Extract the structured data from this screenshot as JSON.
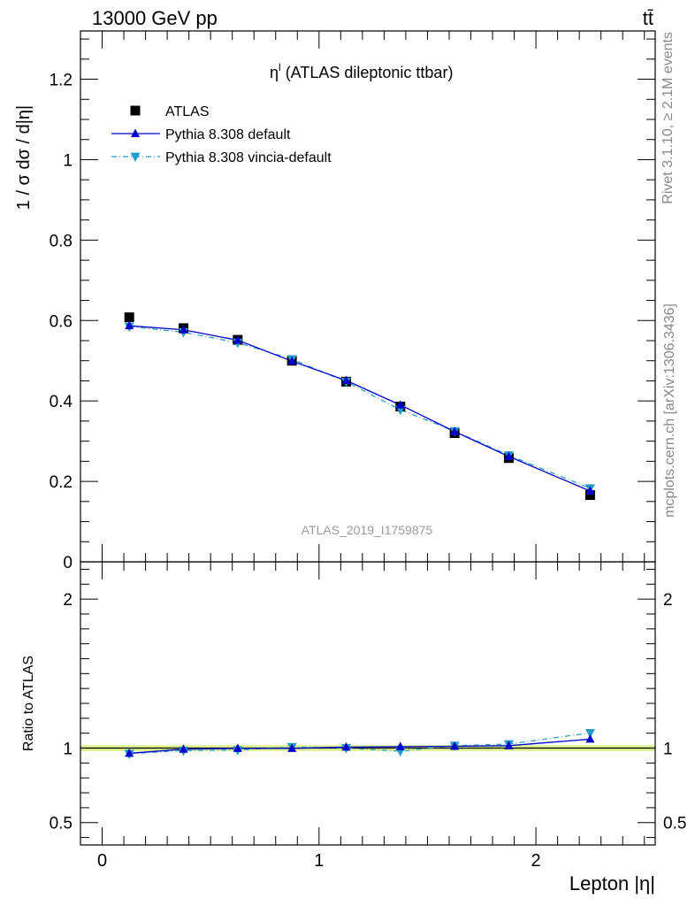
{
  "header": {
    "left": "13000 GeV pp",
    "right": "tt̄"
  },
  "side_labels": {
    "rivet": "Rivet 3.1.10, ≥ 2.1M events",
    "source": "mcplots.cern.ch [arXiv:1306.3436]"
  },
  "chart_data": {
    "type": "scatter",
    "title": "η^l (ATLAS dileptonic ttbar)",
    "title_main": "η",
    "title_sup": "l",
    "title_rest": " (ATLAS dileptonic ttbar)",
    "analysis_id": "ATLAS_2019_I1759875",
    "xlabel": "Lepton |η|",
    "ylabel": "1 / σ  dσ / d|η|",
    "ratio_ylabel": "Ratio to ATLAS",
    "xlim": [
      -0.1,
      2.55
    ],
    "ylim": [
      0,
      1.32
    ],
    "ratio_ylim": [
      0.35,
      2.25
    ],
    "xticks": [
      0,
      1,
      2
    ],
    "xtick_labels": [
      "0",
      "1",
      "2"
    ],
    "yticks": [
      0,
      0.2,
      0.4,
      0.6,
      0.8,
      1,
      1.2
    ],
    "ytick_labels": [
      "0",
      "0.2",
      "0.4",
      "0.6",
      "0.8",
      "1",
      "1.2"
    ],
    "ratio_yticks": [
      0.5,
      1,
      2
    ],
    "ratio_ytick_labels": [
      "0.5",
      "1",
      "2"
    ],
    "x": [
      0.125,
      0.375,
      0.625,
      0.875,
      1.125,
      1.375,
      1.625,
      1.875,
      2.25
    ],
    "series": [
      {
        "name": "ATLAS",
        "values": [
          0.608,
          0.581,
          0.552,
          0.5,
          0.448,
          0.386,
          0.32,
          0.258,
          0.166
        ],
        "color": "#000000",
        "marker": "square"
      },
      {
        "name": "Pythia 8.308 default",
        "values": [
          0.587,
          0.577,
          0.551,
          0.499,
          0.451,
          0.39,
          0.324,
          0.262,
          0.176
        ],
        "color": "#0000cc",
        "marker": "triangle-up"
      },
      {
        "name": "Pythia 8.308 vincia-default",
        "values": [
          0.585,
          0.571,
          0.545,
          0.504,
          0.448,
          0.378,
          0.325,
          0.265,
          0.183
        ],
        "color": "#1f9cc7",
        "marker": "triangle-down"
      }
    ],
    "ratio_series": [
      {
        "name": "Pythia 8.308 default",
        "values": [
          0.965,
          0.993,
          0.998,
          0.998,
          1.007,
          1.01,
          1.012,
          1.016,
          1.06
        ]
      },
      {
        "name": "Pythia 8.308 vincia-default",
        "values": [
          0.962,
          0.983,
          0.987,
          1.008,
          1.0,
          0.979,
          1.016,
          1.027,
          1.102
        ]
      }
    ],
    "legend_position": "top-left",
    "grid": false
  }
}
